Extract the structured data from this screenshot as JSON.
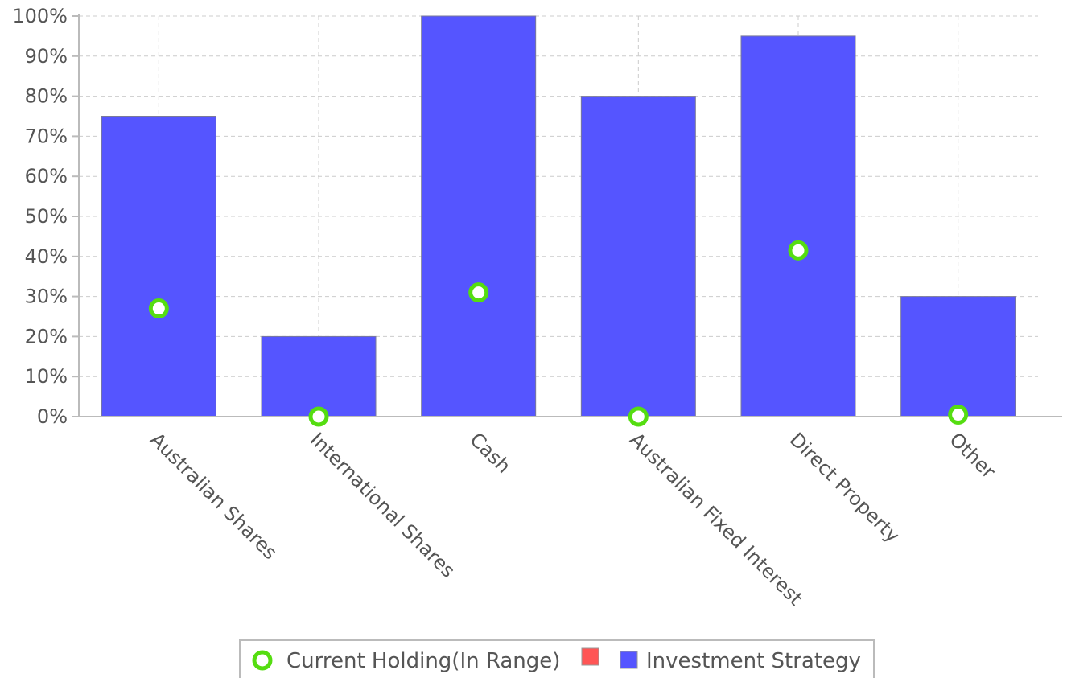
{
  "chart_data": {
    "type": "bar",
    "categories": [
      "Australian Shares",
      "International Shares",
      "Cash",
      "Australian Fixed Interest",
      "Direct Property",
      "Other"
    ],
    "series": [
      {
        "name": "Investment Strategy",
        "kind": "bar",
        "color": "#5555ff",
        "values": [
          75,
          20,
          100,
          80,
          95,
          30
        ]
      },
      {
        "name": "Current Holding(In Range)",
        "kind": "marker",
        "color": "#55dd11",
        "values": [
          27,
          0,
          31,
          0,
          41.5,
          0.5
        ]
      }
    ],
    "legend": {
      "placement": "bottom-center",
      "entries": [
        {
          "label": "Current Holding(In Range)",
          "marker": "ring",
          "color": "#55dd11"
        },
        {
          "label": "",
          "marker": "square",
          "color": "#ff5555"
        },
        {
          "label": "Investment Strategy",
          "marker": "square",
          "color": "#5555ff"
        }
      ]
    },
    "y_ticks": [
      "0%",
      "10%",
      "20%",
      "30%",
      "40%",
      "50%",
      "60%",
      "70%",
      "80%",
      "90%",
      "100%"
    ],
    "ylim": [
      0,
      100
    ],
    "grid": true,
    "title": "",
    "xlabel": "",
    "ylabel": ""
  }
}
